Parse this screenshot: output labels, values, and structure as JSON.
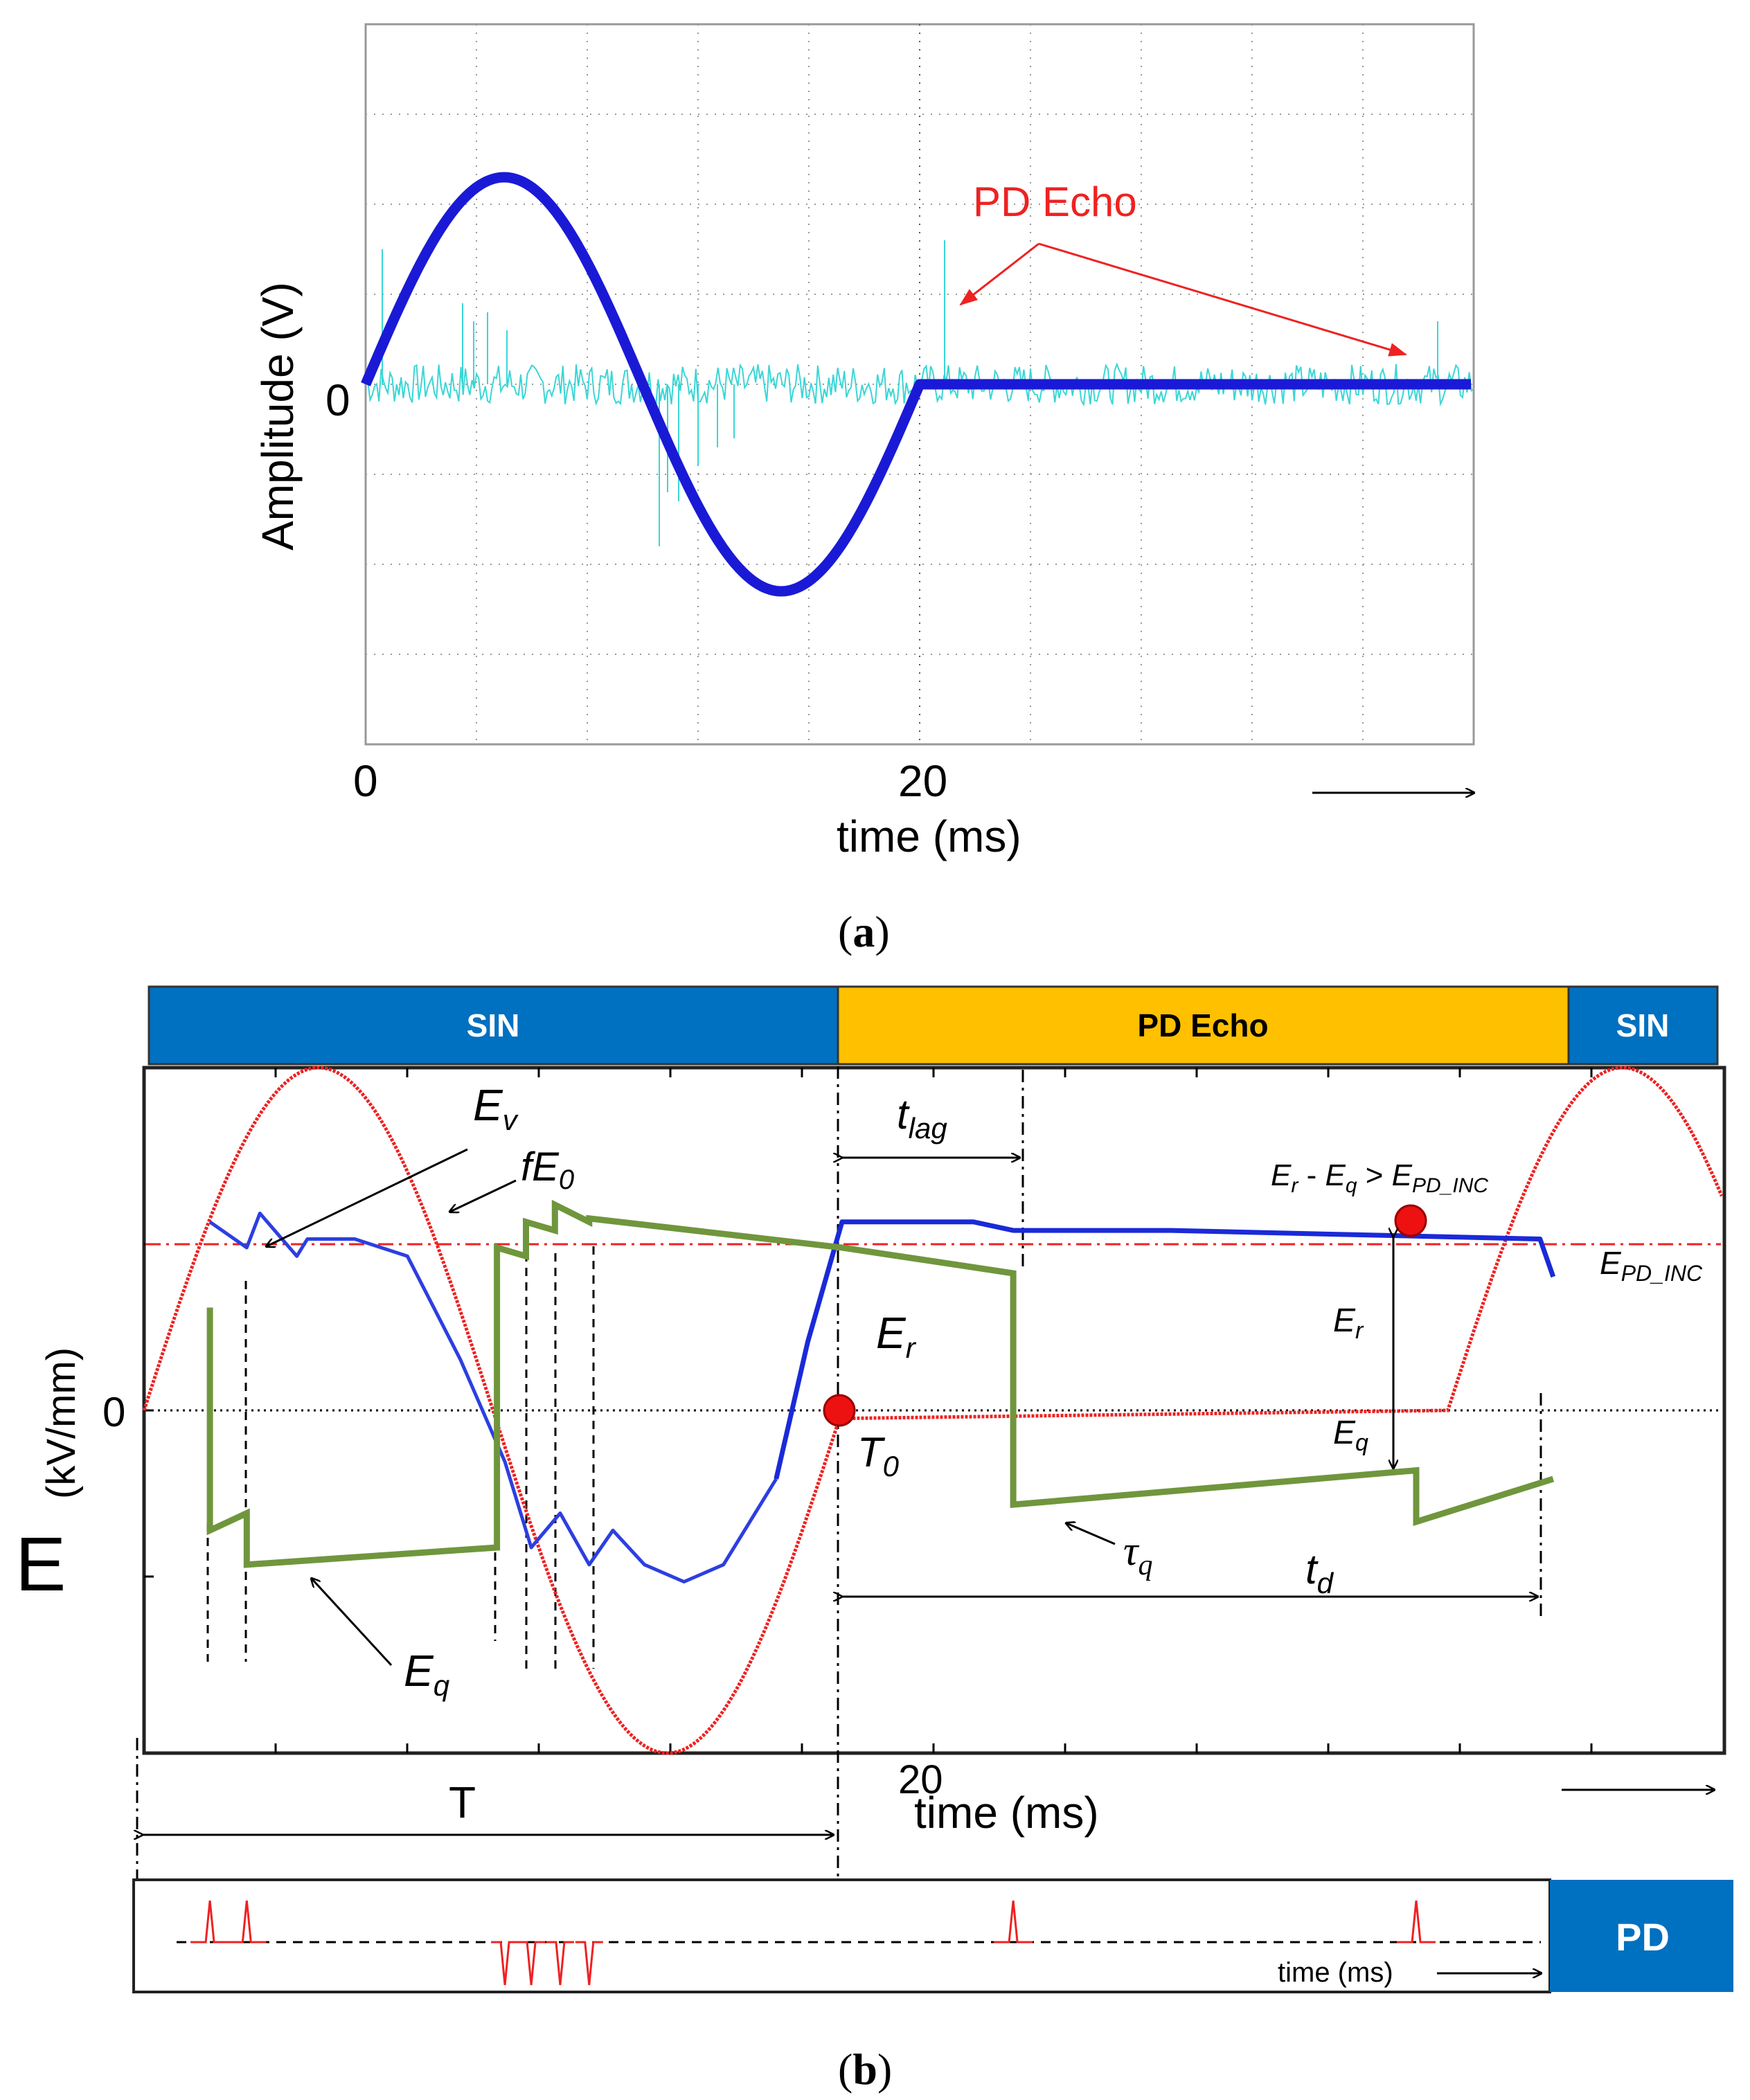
{
  "panel_a": {
    "caption": "(a)",
    "caption_letter": "a",
    "chart_data": {
      "type": "line",
      "title": "",
      "xlabel": "time (ms)",
      "ylabel": "Amplitude  (V)",
      "x_ticks": [
        "0",
        "20"
      ],
      "y_ticks": [
        "0"
      ],
      "xlim": [
        0,
        40
      ],
      "ylim": [
        -4,
        4
      ],
      "grid": true,
      "annotations": [
        "PD Echo"
      ],
      "series": [
        {
          "name": "SIN voltage",
          "color": "#1a1ad6",
          "x": [
            0,
            2,
            4,
            5,
            6,
            8,
            10,
            12,
            14,
            15,
            16,
            18,
            20,
            22,
            30,
            40
          ],
          "y": [
            0,
            1.5,
            2.2,
            2.3,
            2.2,
            1.5,
            0,
            -1.5,
            -2.2,
            -2.3,
            -2.2,
            -1.5,
            0,
            0,
            0,
            0
          ]
        },
        {
          "name": "PD signal",
          "color": "#3ad6d6",
          "spikes_x": [
            0.6,
            3.5,
            3.9,
            4.4,
            5.1,
            10.6,
            10.9,
            11.3,
            12.0,
            12.7,
            13.3,
            20.9,
            38.7
          ],
          "spikes_y": [
            1.5,
            0.9,
            0.7,
            0.8,
            0.6,
            -1.8,
            -1.2,
            -1.3,
            -0.9,
            -0.7,
            -0.6,
            1.6,
            0.7
          ]
        }
      ]
    }
  },
  "panel_b": {
    "caption": "(b)",
    "caption_letter": "b",
    "phase_bar": {
      "sin_left": "SIN",
      "pd_echo": "PD Echo",
      "sin_right": "SIN"
    },
    "chart_data": {
      "type": "line",
      "title": "",
      "xlabel": "time (ms)",
      "ylabel_big": "E",
      "ylabel_units": "(kV/mm)",
      "y_ticks": [
        "0"
      ],
      "xlim": [
        0,
        60
      ],
      "ylim": [
        -2,
        2
      ],
      "x_tick_labels": [
        "20"
      ],
      "series": [
        {
          "name": "Applied field (SIN)",
          "color": "#ee2222",
          "x": [
            0,
            2,
            4,
            6,
            8,
            10,
            12,
            14,
            16,
            18,
            20,
            26.5,
            49.5,
            52,
            54,
            56,
            58,
            60
          ],
          "y": [
            0,
            1.1,
            1.72,
            2.0,
            1.72,
            1.0,
            0,
            -1.0,
            -1.72,
            -2.0,
            -1.72,
            0,
            0,
            0.8,
            1.45,
            1.8,
            2.0,
            2.0
          ]
        },
        {
          "name": "Ev (void field)",
          "color": "#2c3fe0",
          "x": [
            2.5,
            3.9,
            4.4,
            5.8,
            6.2,
            8,
            10,
            12,
            13.7,
            14.7,
            15.8,
            16.9,
            17.8,
            19,
            20.5,
            22,
            24,
            25.2,
            26.5,
            31.5,
            33,
            39,
            53,
            53.5
          ],
          "y": [
            1.1,
            0.95,
            1.15,
            0.9,
            1.0,
            1.0,
            0.9,
            0.3,
            -0.3,
            -0.8,
            -0.6,
            -0.9,
            -0.7,
            -0.9,
            -1.0,
            -0.9,
            -0.4,
            0.4,
            1.1,
            1.1,
            1.05,
            1.05,
            1.0,
            0.78
          ]
        },
        {
          "name": "Eq (charge field)",
          "color": "#70963d",
          "x": [
            2.5,
            2.5,
            3.9,
            3.9,
            13.4,
            13.4,
            14.5,
            14.5,
            15.6,
            15.6,
            16.9,
            16.9,
            26.5,
            33,
            33,
            48.3,
            48.3,
            53.5
          ],
          "y": [
            0.6,
            -0.7,
            -0.6,
            -0.9,
            -0.8,
            0.95,
            0.9,
            1.1,
            1.05,
            1.2,
            1.1,
            1.12,
            0.95,
            0.8,
            -0.55,
            -0.35,
            -0.65,
            -0.4
          ]
        }
      ],
      "reference_line": {
        "name": "EPD_INC",
        "y": 1.0,
        "style": "dash-dot",
        "color": "#ee2222"
      },
      "markers": [
        {
          "name": "T0",
          "x": 26.5,
          "y": 0
        },
        {
          "name": "Er - Eq > EPD_INC",
          "x": 48.3,
          "y": 1.05
        }
      ],
      "annotations": {
        "Ev": {
          "base": "E",
          "sub": "v"
        },
        "fE0": {
          "base": "fE",
          "sub": "0"
        },
        "Eq_label": {
          "base": "E",
          "sub": "q"
        },
        "Er_label": {
          "base": "E",
          "sub": "r"
        },
        "T0": {
          "base": "T",
          "sub": "0"
        },
        "tlag": {
          "base": "t",
          "sub": "lag"
        },
        "td": {
          "base": "t",
          "sub": "d"
        },
        "tauq": {
          "base": "τ",
          "sub": "q"
        },
        "T": "T",
        "condition": {
          "a": "E",
          "a_sub": "r",
          "op1": " - ",
          "b": "E",
          "b_sub": "q",
          "op2": " > ",
          "c": "E",
          "c_sub": "PD_INC"
        },
        "epd_inc": {
          "base": "E",
          "sub": "PD_INC"
        },
        "er_arrow": {
          "base": "E",
          "sub": "r"
        },
        "eq_arrow": {
          "base": "E",
          "sub": "q"
        }
      }
    },
    "pd_strip": {
      "label": "PD",
      "time_label": "time (ms)",
      "positive_pulses_x": [
        2.5,
        3.9,
        33,
        48.3
      ],
      "negative_pulses_x": [
        13.7,
        14.7,
        15.8,
        16.9
      ]
    }
  },
  "colors": {
    "sin_bar": "#0070c0",
    "pd_echo_bar": "#ffc000",
    "pd_box": "#0070c0",
    "annotation_red": "#ee2222"
  }
}
